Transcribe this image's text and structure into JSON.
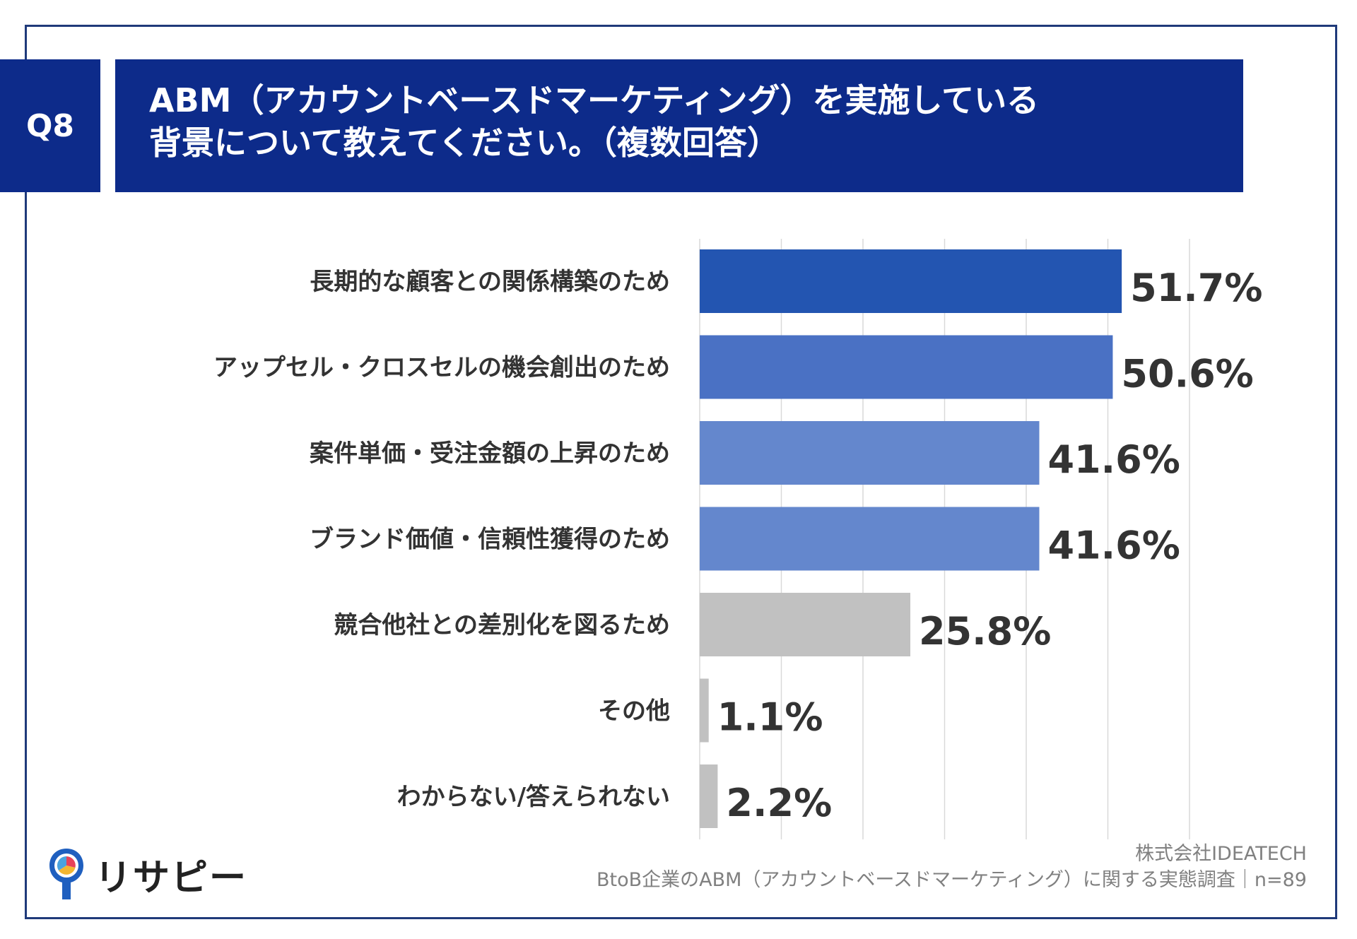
{
  "question": {
    "tag": "Q8",
    "title_line1": "ABM（アカウントベースドマーケティング）を実施している",
    "title_line2": "背景について教えてください。（複数回答）"
  },
  "colors": {
    "header_bg": "#0d2b8a",
    "bar_dark": "#2355b1",
    "bar_mid": "#4a71c4",
    "bar_light": "#6487cd",
    "bar_gray": "#c1c1c1"
  },
  "chart_data": {
    "type": "bar",
    "orientation": "horizontal",
    "title": "ABM（アカウントベースドマーケティング）を実施している背景について教えてください。（複数回答）",
    "xlabel": "",
    "ylabel": "",
    "xlim": [
      0,
      100
    ],
    "grid": true,
    "categories": [
      "長期的な顧客との関係構築のため",
      "アップセル・クロスセルの機会創出のため",
      "案件単価・受注金額の上昇のため",
      "ブランド価値・信頼性獲得のため",
      "競合他社との差別化を図るため",
      "その他",
      "わからない/答えられない"
    ],
    "values": [
      51.7,
      50.6,
      41.6,
      41.6,
      25.8,
      1.1,
      2.2
    ],
    "value_labels": [
      "51.7%",
      "50.6%",
      "41.6%",
      "41.6%",
      "25.8%",
      "1.1%",
      "2.2%"
    ],
    "bar_colors": [
      "#2355b1",
      "#4a71c4",
      "#6487cd",
      "#6487cd",
      "#c1c1c1",
      "#c1c1c1",
      "#c1c1c1"
    ]
  },
  "logo": {
    "text": "リサピー"
  },
  "footer": {
    "company": "株式会社IDEATECH",
    "survey": "BtoB企業のABM（アカウントベースドマーケティング）に関する実態調査｜n=89"
  }
}
